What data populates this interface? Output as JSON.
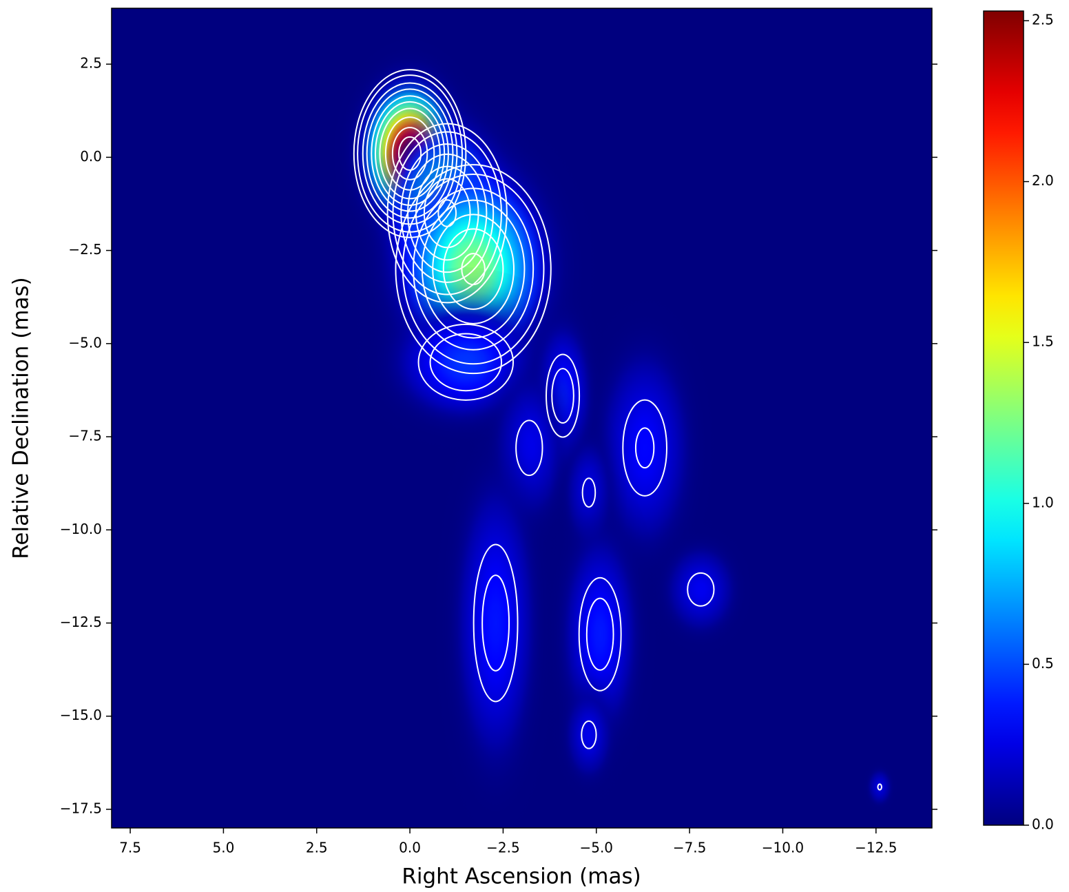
{
  "chart_data": {
    "type": "image",
    "x_label": "Right Ascension (mas)",
    "y_label": "Relative Declination (mas)",
    "xlim": [
      8.0,
      -14.0
    ],
    "ylim": [
      -18.0,
      4.0
    ],
    "xticks": [
      7.5,
      {
        "value": 5.0,
        "label": "5.0"
      },
      2.5,
      {
        "value": 0.0,
        "label": "0.0"
      },
      {
        "value": -2.5,
        "label": "−2.5"
      },
      {
        "value": -5.0,
        "label": "−5.0"
      },
      {
        "value": -7.5,
        "label": "−7.5"
      },
      {
        "value": -10.0,
        "label": "−10.0"
      },
      {
        "value": -12.5,
        "label": "−12.5"
      }
    ],
    "yticks": [
      2.5,
      {
        "value": 0.0,
        "label": "0.0"
      },
      {
        "value": -2.5,
        "label": "−2.5"
      },
      {
        "value": -5.0,
        "label": "−5.0"
      },
      {
        "value": -7.5,
        "label": "−7.5"
      },
      {
        "value": -10.0,
        "label": "−10.0"
      },
      {
        "value": -12.5,
        "label": "−12.5"
      },
      {
        "value": -15.0,
        "label": "−15.0"
      },
      {
        "value": -17.5,
        "label": "−17.5"
      }
    ],
    "colormap": "jet",
    "background": "#00007f",
    "contour_color": "#ffffff",
    "clim": [
      0.0,
      2.53
    ],
    "cticks": [
      {
        "value": 0.0,
        "label": "0.0"
      },
      0.5,
      {
        "value": 1.0,
        "label": "1.0"
      },
      1.5,
      {
        "value": 2.0,
        "label": "2.0"
      },
      2.5
    ],
    "contour_levels": [
      0.22,
      0.3,
      0.45,
      0.6,
      0.8,
      1.0,
      1.25,
      1.6,
      2.0,
      2.3
    ],
    "components": {
      "ra": [
        0.0,
        -1.0,
        -1.7,
        -1.5,
        -4.1,
        -3.2,
        -6.3,
        -4.8,
        -2.3,
        -5.1,
        -4.8,
        -7.8,
        -12.6
      ],
      "dec": [
        0.1,
        -1.5,
        -3.0,
        -5.5,
        -6.4,
        -7.8,
        -7.8,
        -9.0,
        -12.5,
        -12.8,
        -15.5,
        -11.6,
        -16.9
      ],
      "peak": [
        2.53,
        1.3,
        1.3,
        0.45,
        0.38,
        0.28,
        0.32,
        0.25,
        0.36,
        0.37,
        0.26,
        0.28,
        0.23
      ],
      "width": [
        1.6,
        2.0,
        2.6,
        2.5,
        1.0,
        1.2,
        1.6,
        0.8,
        1.4,
        1.3,
        0.8,
        1.2,
        0.4
      ],
      "height": [
        2.4,
        3.0,
        3.5,
        2.0,
        2.5,
        2.5,
        3.5,
        1.8,
        5.0,
        3.5,
        1.5,
        1.5,
        0.6
      ]
    }
  }
}
